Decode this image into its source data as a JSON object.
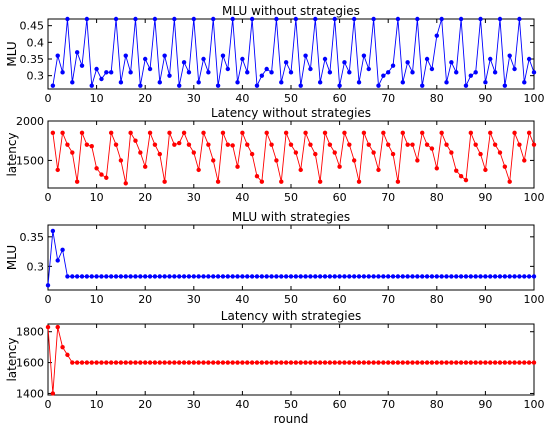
{
  "chart_data": [
    {
      "type": "line",
      "title": "MLU without strategies",
      "xlabel": "",
      "ylabel": "MLU",
      "xlim": [
        0,
        100
      ],
      "ylim": [
        0.26,
        0.47
      ],
      "xticks": [
        0,
        10,
        20,
        30,
        40,
        50,
        60,
        70,
        80,
        90,
        100
      ],
      "yticks": [
        0.3,
        0.35,
        0.4,
        0.45
      ],
      "ytick_labels": [
        "0.3",
        "0.35",
        "0.4",
        "0.45"
      ],
      "color": "#0000ff",
      "grid": false,
      "x": [
        1,
        2,
        3,
        4,
        5,
        6,
        7,
        8,
        9,
        10,
        11,
        12,
        13,
        14,
        15,
        16,
        17,
        18,
        19,
        20,
        21,
        22,
        23,
        24,
        25,
        26,
        27,
        28,
        29,
        30,
        31,
        32,
        33,
        34,
        35,
        36,
        37,
        38,
        39,
        40,
        41,
        42,
        43,
        44,
        45,
        46,
        47,
        48,
        49,
        50,
        51,
        52,
        53,
        54,
        55,
        56,
        57,
        58,
        59,
        60,
        61,
        62,
        63,
        64,
        65,
        66,
        67,
        68,
        69,
        70,
        71,
        72,
        73,
        74,
        75,
        76,
        77,
        78,
        79,
        80,
        81,
        82,
        83,
        84,
        85,
        86,
        87,
        88,
        89,
        90,
        91,
        92,
        93,
        94,
        95,
        96,
        97,
        98,
        99,
        100
      ],
      "values": [
        0.27,
        0.36,
        0.31,
        0.47,
        0.28,
        0.37,
        0.33,
        0.47,
        0.27,
        0.32,
        0.29,
        0.31,
        0.31,
        0.47,
        0.28,
        0.36,
        0.31,
        0.47,
        0.27,
        0.35,
        0.32,
        0.47,
        0.28,
        0.36,
        0.3,
        0.47,
        0.27,
        0.34,
        0.31,
        0.47,
        0.28,
        0.35,
        0.31,
        0.47,
        0.27,
        0.36,
        0.32,
        0.47,
        0.28,
        0.35,
        0.31,
        0.47,
        0.27,
        0.3,
        0.32,
        0.31,
        0.47,
        0.28,
        0.34,
        0.31,
        0.47,
        0.27,
        0.36,
        0.32,
        0.47,
        0.28,
        0.35,
        0.31,
        0.47,
        0.27,
        0.34,
        0.31,
        0.47,
        0.28,
        0.36,
        0.32,
        0.47,
        0.27,
        0.3,
        0.31,
        0.33,
        0.47,
        0.28,
        0.34,
        0.31,
        0.47,
        0.27,
        0.35,
        0.32,
        0.42,
        0.47,
        0.28,
        0.34,
        0.31,
        0.47,
        0.27,
        0.3,
        0.31,
        0.47,
        0.28,
        0.35,
        0.31,
        0.47,
        0.27,
        0.36,
        0.32,
        0.47,
        0.28,
        0.35,
        0.31
      ]
    },
    {
      "type": "line",
      "title": "Latency without strategies",
      "xlabel": "",
      "ylabel": "latency",
      "xlim": [
        0,
        100
      ],
      "ylim": [
        1150,
        2000
      ],
      "xticks": [
        0,
        10,
        20,
        30,
        40,
        50,
        60,
        70,
        80,
        90,
        100
      ],
      "yticks": [
        1500,
        2000
      ],
      "ytick_labels": [
        "1500",
        "2000"
      ],
      "color": "#ff0000",
      "grid": false,
      "x": [
        1,
        2,
        3,
        4,
        5,
        6,
        7,
        8,
        9,
        10,
        11,
        12,
        13,
        14,
        15,
        16,
        17,
        18,
        19,
        20,
        21,
        22,
        23,
        24,
        25,
        26,
        27,
        28,
        29,
        30,
        31,
        32,
        33,
        34,
        35,
        36,
        37,
        38,
        39,
        40,
        41,
        42,
        43,
        44,
        45,
        46,
        47,
        48,
        49,
        50,
        51,
        52,
        53,
        54,
        55,
        56,
        57,
        58,
        59,
        60,
        61,
        62,
        63,
        64,
        65,
        66,
        67,
        68,
        69,
        70,
        71,
        72,
        73,
        74,
        75,
        76,
        77,
        78,
        79,
        80,
        81,
        82,
        83,
        84,
        85,
        86,
        87,
        88,
        89,
        90,
        91,
        92,
        93,
        94,
        95,
        96,
        97,
        98,
        99,
        100
      ],
      "values": [
        1850,
        1380,
        1850,
        1700,
        1600,
        1230,
        1850,
        1700,
        1680,
        1400,
        1320,
        1280,
        1850,
        1700,
        1500,
        1210,
        1850,
        1750,
        1600,
        1420,
        1850,
        1700,
        1580,
        1230,
        1850,
        1700,
        1720,
        1850,
        1700,
        1600,
        1380,
        1850,
        1700,
        1500,
        1230,
        1850,
        1700,
        1690,
        1420,
        1850,
        1700,
        1580,
        1300,
        1230,
        1850,
        1700,
        1500,
        1230,
        1850,
        1700,
        1600,
        1380,
        1850,
        1700,
        1580,
        1230,
        1850,
        1700,
        1600,
        1420,
        1850,
        1700,
        1500,
        1230,
        1850,
        1700,
        1600,
        1380,
        1850,
        1700,
        1580,
        1230,
        1850,
        1700,
        1700,
        1500,
        1850,
        1700,
        1650,
        1400,
        1850,
        1700,
        1600,
        1370,
        1300,
        1250,
        1850,
        1700,
        1580,
        1380,
        1850,
        1700,
        1600,
        1420,
        1230,
        1850,
        1700,
        1500,
        1850,
        1700
      ]
    },
    {
      "type": "line",
      "title": "MLU with strategies",
      "xlabel": "",
      "ylabel": "MLU",
      "xlim": [
        0,
        100
      ],
      "ylim": [
        0.26,
        0.37
      ],
      "xticks": [
        0,
        10,
        20,
        30,
        40,
        50,
        60,
        70,
        80,
        90,
        100
      ],
      "yticks": [
        0.3,
        0.35
      ],
      "ytick_labels": [
        "0.3",
        "0.35"
      ],
      "color": "#0000ff",
      "grid": false,
      "x": [
        0,
        1,
        2,
        3,
        4,
        5,
        6,
        7,
        8,
        9,
        10,
        11,
        12,
        13,
        14,
        15,
        16,
        17,
        18,
        19,
        20,
        21,
        22,
        23,
        24,
        25,
        26,
        27,
        28,
        29,
        30,
        31,
        32,
        33,
        34,
        35,
        36,
        37,
        38,
        39,
        40,
        41,
        42,
        43,
        44,
        45,
        46,
        47,
        48,
        49,
        50,
        51,
        52,
        53,
        54,
        55,
        56,
        57,
        58,
        59,
        60,
        61,
        62,
        63,
        64,
        65,
        66,
        67,
        68,
        69,
        70,
        71,
        72,
        73,
        74,
        75,
        76,
        77,
        78,
        79,
        80,
        81,
        82,
        83,
        84,
        85,
        86,
        87,
        88,
        89,
        90,
        91,
        92,
        93,
        94,
        95,
        96,
        97,
        98,
        99,
        100
      ],
      "values": [
        0.268,
        0.36,
        0.31,
        0.328,
        0.283,
        0.283,
        0.283,
        0.283,
        0.283,
        0.283,
        0.283,
        0.283,
        0.283,
        0.283,
        0.283,
        0.283,
        0.283,
        0.283,
        0.283,
        0.283,
        0.283,
        0.283,
        0.283,
        0.283,
        0.283,
        0.283,
        0.283,
        0.283,
        0.283,
        0.283,
        0.283,
        0.283,
        0.283,
        0.283,
        0.283,
        0.283,
        0.283,
        0.283,
        0.283,
        0.283,
        0.283,
        0.283,
        0.283,
        0.283,
        0.283,
        0.283,
        0.283,
        0.283,
        0.283,
        0.283,
        0.283,
        0.283,
        0.283,
        0.283,
        0.283,
        0.283,
        0.283,
        0.283,
        0.283,
        0.283,
        0.283,
        0.283,
        0.283,
        0.283,
        0.283,
        0.283,
        0.283,
        0.283,
        0.283,
        0.283,
        0.283,
        0.283,
        0.283,
        0.283,
        0.283,
        0.283,
        0.283,
        0.283,
        0.283,
        0.283,
        0.283,
        0.283,
        0.283,
        0.283,
        0.283,
        0.283,
        0.283,
        0.283,
        0.283,
        0.283,
        0.283,
        0.283,
        0.283,
        0.283,
        0.283,
        0.283,
        0.283,
        0.283,
        0.283,
        0.283,
        0.283
      ]
    },
    {
      "type": "line",
      "title": "Latency with strategies",
      "xlabel": "round",
      "ylabel": "latency",
      "xlim": [
        0,
        100
      ],
      "ylim": [
        1390,
        1850
      ],
      "xticks": [
        0,
        10,
        20,
        30,
        40,
        50,
        60,
        70,
        80,
        90,
        100
      ],
      "yticks": [
        1400,
        1600,
        1800
      ],
      "ytick_labels": [
        "1400",
        "1600",
        "1800"
      ],
      "color": "#ff0000",
      "grid": false,
      "x": [
        0,
        1,
        2,
        3,
        4,
        5,
        6,
        7,
        8,
        9,
        10,
        11,
        12,
        13,
        14,
        15,
        16,
        17,
        18,
        19,
        20,
        21,
        22,
        23,
        24,
        25,
        26,
        27,
        28,
        29,
        30,
        31,
        32,
        33,
        34,
        35,
        36,
        37,
        38,
        39,
        40,
        41,
        42,
        43,
        44,
        45,
        46,
        47,
        48,
        49,
        50,
        51,
        52,
        53,
        54,
        55,
        56,
        57,
        58,
        59,
        60,
        61,
        62,
        63,
        64,
        65,
        66,
        67,
        68,
        69,
        70,
        71,
        72,
        73,
        74,
        75,
        76,
        77,
        78,
        79,
        80,
        81,
        82,
        83,
        84,
        85,
        86,
        87,
        88,
        89,
        90,
        91,
        92,
        93,
        94,
        95,
        96,
        97,
        98,
        99,
        100
      ],
      "values": [
        1830,
        1400,
        1830,
        1700,
        1650,
        1600,
        1600,
        1600,
        1600,
        1600,
        1600,
        1600,
        1600,
        1600,
        1600,
        1600,
        1600,
        1600,
        1600,
        1600,
        1600,
        1600,
        1600,
        1600,
        1600,
        1600,
        1600,
        1600,
        1600,
        1600,
        1600,
        1600,
        1600,
        1600,
        1600,
        1600,
        1600,
        1600,
        1600,
        1600,
        1600,
        1600,
        1600,
        1600,
        1600,
        1600,
        1600,
        1600,
        1600,
        1600,
        1600,
        1600,
        1600,
        1600,
        1600,
        1600,
        1600,
        1600,
        1600,
        1600,
        1600,
        1600,
        1600,
        1600,
        1600,
        1600,
        1600,
        1600,
        1600,
        1600,
        1600,
        1600,
        1600,
        1600,
        1600,
        1600,
        1600,
        1600,
        1600,
        1600,
        1600,
        1600,
        1600,
        1600,
        1600,
        1600,
        1600,
        1600,
        1600,
        1600,
        1600,
        1600,
        1600,
        1600,
        1600,
        1600,
        1600,
        1600,
        1600,
        1600,
        1600
      ]
    }
  ]
}
